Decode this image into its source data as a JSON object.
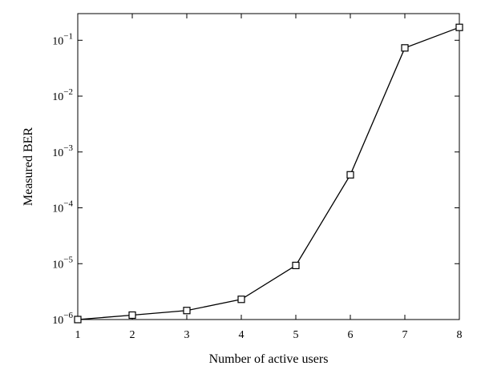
{
  "chart_data": {
    "type": "line",
    "xlabel": "Number of active users",
    "ylabel": "Measured BER",
    "xlim": [
      1,
      8
    ],
    "ylim": [
      1e-06,
      0.3
    ],
    "yscale": "log",
    "grid": false,
    "x_ticks": [
      1,
      2,
      3,
      4,
      5,
      6,
      7,
      8
    ],
    "y_ticks": [
      {
        "value": 1e-06,
        "base": "10",
        "exp": "−6"
      },
      {
        "value": 1e-05,
        "base": "10",
        "exp": "−5"
      },
      {
        "value": 0.0001,
        "base": "10",
        "exp": "−4"
      },
      {
        "value": 0.001,
        "base": "10",
        "exp": "−3"
      },
      {
        "value": 0.01,
        "base": "10",
        "exp": "−2"
      },
      {
        "value": 0.1,
        "base": "10",
        "exp": "−1"
      }
    ],
    "series": [
      {
        "marker": "square",
        "color": "#000000",
        "x": [
          1,
          2,
          3,
          4,
          5,
          6,
          7,
          8
        ],
        "y": [
          1e-06,
          1.2e-06,
          1.45e-06,
          2.3e-06,
          9.3e-06,
          0.00039,
          0.073,
          0.17
        ]
      }
    ]
  }
}
